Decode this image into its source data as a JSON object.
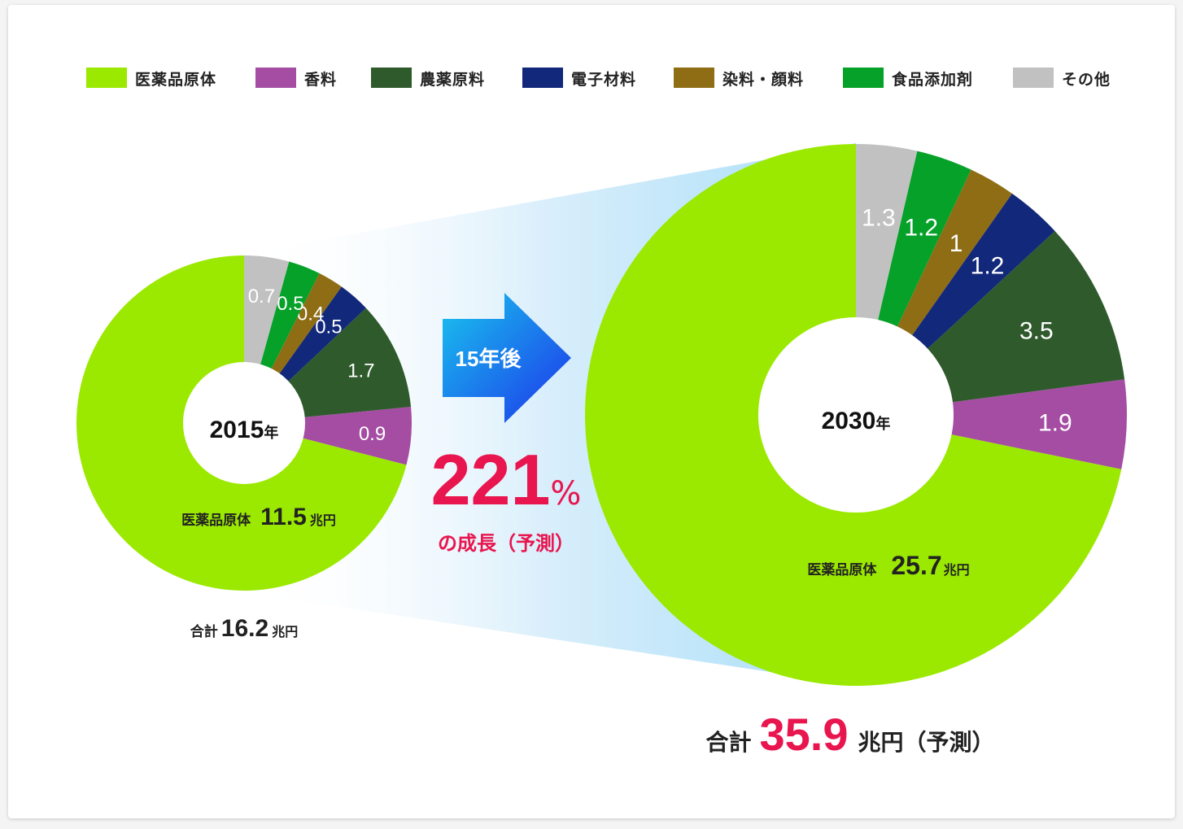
{
  "legend": [
    {
      "label": "医薬品原体",
      "color": "#9be900"
    },
    {
      "label": "香料",
      "color": "#a44da3"
    },
    {
      "label": "農薬原料",
      "color": "#2f5a2c"
    },
    {
      "label": "電子材料",
      "color": "#12287a"
    },
    {
      "label": "染料・顔料",
      "color": "#8e6d14"
    },
    {
      "label": "食品添加剤",
      "color": "#05a129"
    },
    {
      "label": "その他",
      "color": "#c1c1c1"
    }
  ],
  "chart_data": [
    {
      "type": "pie",
      "center_label": {
        "year": "2015",
        "unit": "年"
      },
      "categories": [
        "医薬品原体",
        "香料",
        "農薬原料",
        "電子材料",
        "染料・顔料",
        "食品添加剤",
        "その他"
      ],
      "values": [
        11.5,
        0.9,
        1.7,
        0.5,
        0.4,
        0.5,
        0.7
      ],
      "value_labels": [
        "11.5",
        "0.9",
        "1.7",
        "0.5",
        "0.4",
        "0.5",
        "0.7"
      ],
      "main_label": {
        "name": "医薬品原体",
        "value": "11.5",
        "unit": "兆円"
      },
      "total": {
        "prefix": "合計",
        "value": "16.2",
        "unit": "兆円"
      }
    },
    {
      "type": "pie",
      "center_label": {
        "year": "2030",
        "unit": "年"
      },
      "categories": [
        "医薬品原体",
        "香料",
        "農薬原料",
        "電子材料",
        "染料・顔料",
        "食品添加剤",
        "その他"
      ],
      "values": [
        25.7,
        1.9,
        3.5,
        1.2,
        1,
        1.2,
        1.3
      ],
      "value_labels": [
        "25.7",
        "1.9",
        "3.5",
        "1.2",
        "1",
        "1.2",
        "1.3"
      ],
      "main_label": {
        "name": "医薬品原体",
        "value": "25.7",
        "unit": "兆円"
      },
      "total": {
        "prefix": "合計",
        "value": "35.9",
        "unit": "兆円（予測）"
      }
    }
  ],
  "arrow": {
    "label": "15年後",
    "growth_value": "221",
    "growth_unit": "%",
    "growth_caption": "の成長（予測）"
  },
  "colors": {
    "accent_red": "#e8154e",
    "arrow_start": "#19c5ee",
    "arrow_end": "#1d33ea"
  }
}
